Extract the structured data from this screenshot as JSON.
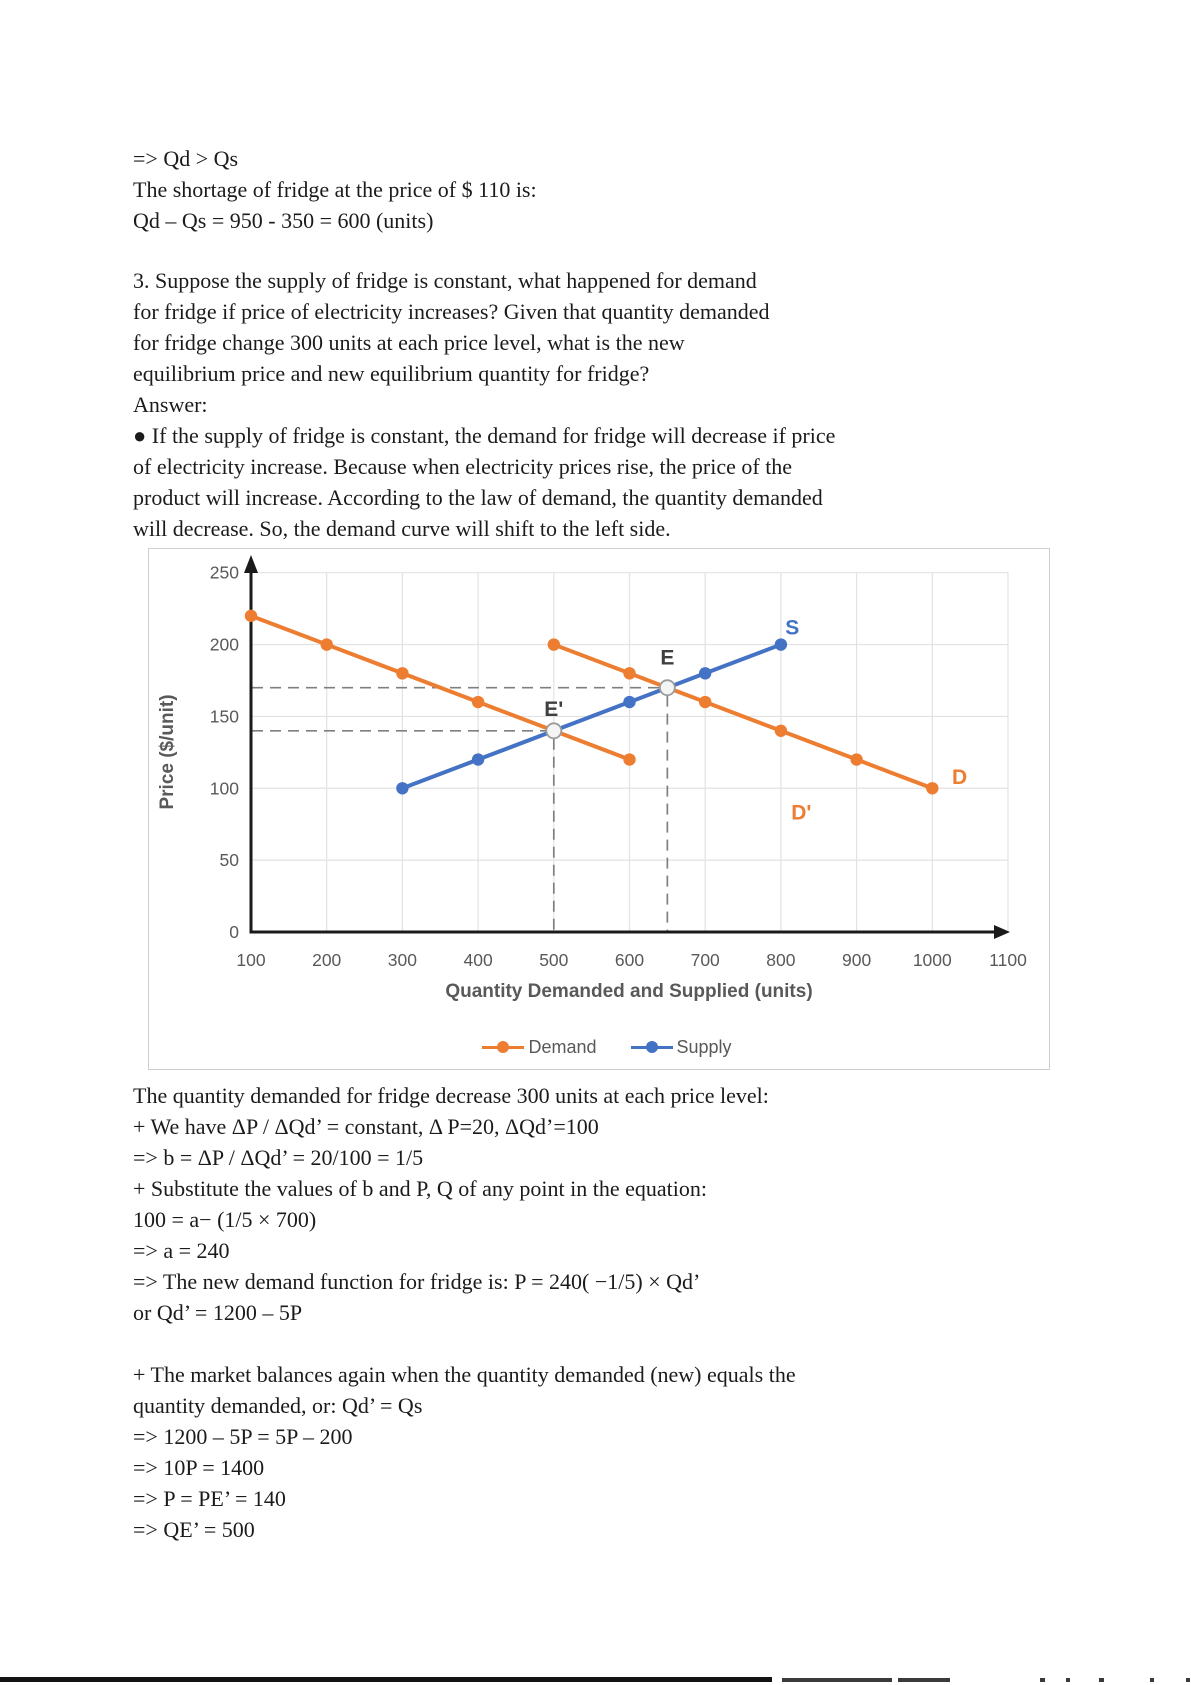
{
  "text": {
    "intro": [
      "=> Qd > Qs",
      "The shortage of fridge at the price of $ 110 is:",
      "Qd – Qs = 950 - 350 = 600 (units)"
    ],
    "question": [
      "3. Suppose the supply of fridge is constant, what happened for demand",
      "for fridge if price of electricity increases? Given that quantity demanded",
      "for fridge change 300 units at each price level, what is the new",
      "equilibrium price and new equilibrium quantity for fridge?"
    ],
    "answer_label": "Answer:",
    "bullet": [
      "● If the supply of fridge is constant, the demand for fridge will decrease if price",
      "of electricity increase. Because when electricity prices rise, the price of the",
      "product will increase. According to the law of demand, the quantity demanded",
      "will decrease. So, the demand curve will shift to the left side."
    ],
    "calc1": [
      "The quantity demanded for fridge decrease 300 units at each price level:",
      "+ We have ΔP / ΔQd’ = constant, Δ P=20, ΔQd’=100",
      "=> b = ΔP / ΔQd’ = 20/100 = 1/5",
      "+ Substitute the values of b and P, Q of any point in the equation:",
      "100 = a− (1/5 × 700)",
      "=> a = 240",
      "=> The new demand function for fridge is: P = 240( −1/5) × Qd’",
      "or Qd’ = 1200 – 5P"
    ],
    "calc2": [
      "+ The market balances again when the quantity demanded (new) equals the",
      "quantity demanded, or: Qd’ = Qs",
      "=> 1200 – 5P = 5P – 200",
      "=> 10P = 1400",
      "=> P = PE’ = 140",
      "=> QE’ = 500"
    ]
  },
  "chart_data": {
    "type": "line",
    "title": "",
    "xlabel": "Quantity Demanded and Supplied (units)",
    "ylabel": "Price ($/unit)",
    "xlim": [
      100,
      1150
    ],
    "ylim": [
      0,
      260
    ],
    "x_ticks": [
      100,
      200,
      300,
      400,
      500,
      600,
      700,
      800,
      900,
      1000,
      1100
    ],
    "y_ticks": [
      0,
      50,
      100,
      150,
      200,
      250
    ],
    "grid": true,
    "legend_position": "bottom",
    "series": [
      {
        "name": "Demand",
        "id": "D",
        "color": "#ED7D31",
        "points": [
          [
            500,
            200
          ],
          [
            600,
            180
          ],
          [
            700,
            160
          ],
          [
            800,
            140
          ],
          [
            900,
            120
          ],
          [
            1000,
            100
          ]
        ]
      },
      {
        "name": "Demand shifted",
        "id": "D'",
        "color": "#ED7D31",
        "points": [
          [
            100,
            220
          ],
          [
            200,
            200
          ],
          [
            300,
            180
          ],
          [
            400,
            160
          ],
          [
            500,
            140
          ],
          [
            600,
            120
          ]
        ]
      },
      {
        "name": "Supply",
        "id": "S",
        "color": "#4472C4",
        "points": [
          [
            300,
            100
          ],
          [
            400,
            120
          ],
          [
            500,
            140
          ],
          [
            600,
            160
          ],
          [
            700,
            180
          ],
          [
            800,
            200
          ]
        ]
      }
    ],
    "equilibria": [
      {
        "label": "E",
        "x": 650,
        "y": 170
      },
      {
        "label": "E'",
        "x": 500,
        "y": 140
      }
    ],
    "annotations": [
      {
        "text": "S",
        "color": "#4472C4",
        "x": 815,
        "y": 212
      },
      {
        "text": "D",
        "color": "#ED7D31",
        "x": 1036,
        "y": 108
      },
      {
        "text": "D'",
        "color": "#ED7D31",
        "x": 827,
        "y": 83
      },
      {
        "text": "E",
        "color": "#3f3f3f",
        "x": 650,
        "y": 191
      },
      {
        "text": "E'",
        "color": "#3f3f3f",
        "x": 500,
        "y": 155
      }
    ],
    "legend": [
      {
        "label": "Demand",
        "color": "#ED7D31"
      },
      {
        "label": "Supply",
        "color": "#4472C4"
      }
    ],
    "colors": {
      "grid": "#e2e2e2",
      "axis": "#1a1a1a",
      "tick_text": "#595959",
      "dashed_guides": "#7f7f7f",
      "equilibrium_fill": "#f5f5f5",
      "equilibrium_stroke": "#9b9b9b"
    }
  }
}
